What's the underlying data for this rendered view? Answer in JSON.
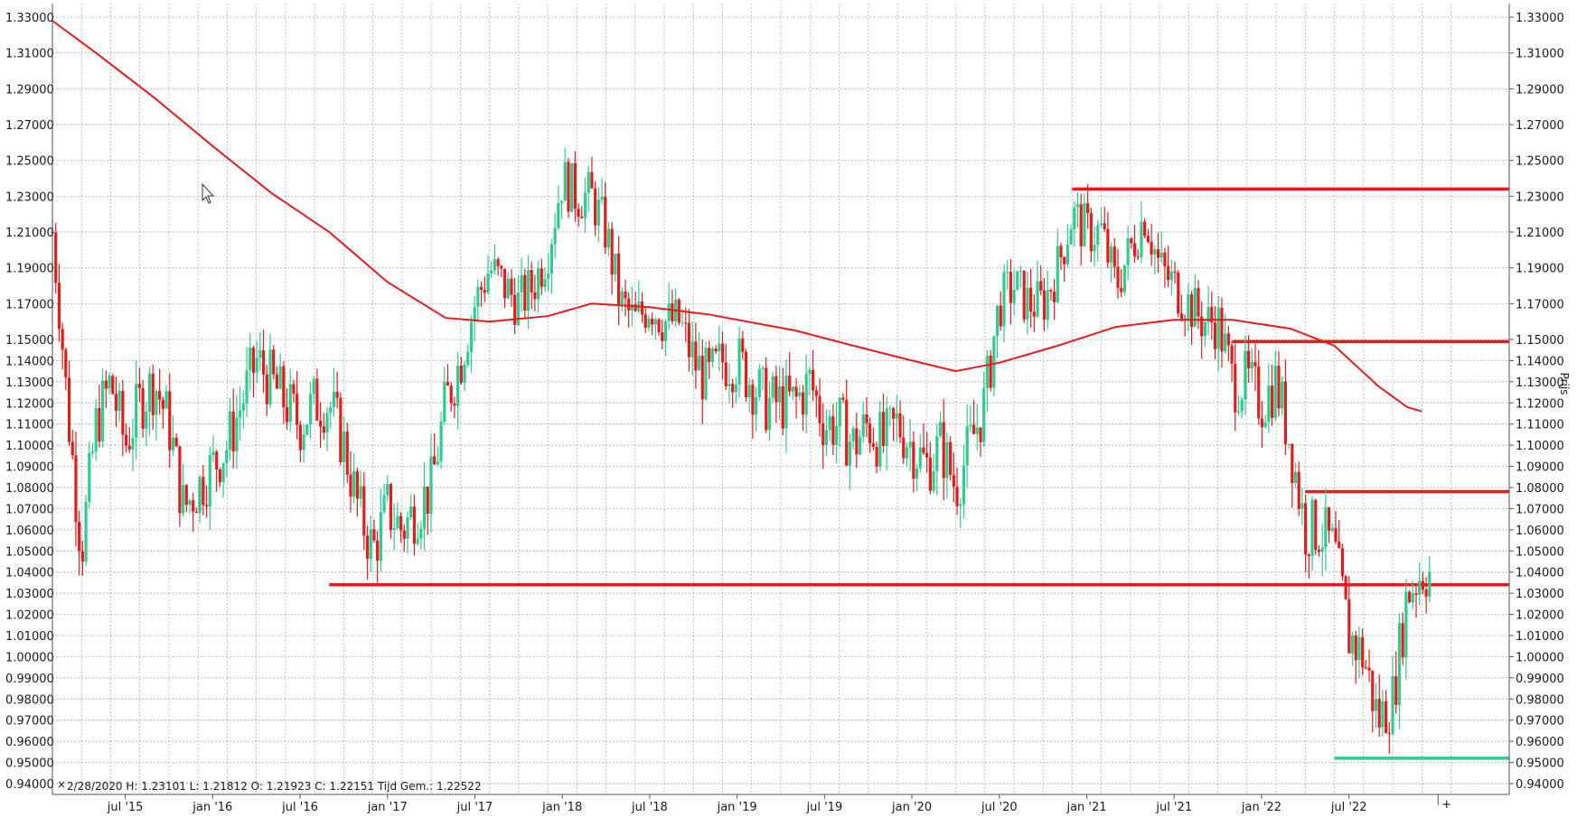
{
  "chart_data": {
    "type": "candlestick",
    "y_axis": {
      "label": "Prijs",
      "range": [
        0.935,
        1.337
      ],
      "ticks": [
        "1.33000",
        "1.31000",
        "1.29000",
        "1.27000",
        "1.25000",
        "1.23000",
        "1.21000",
        "1.19000",
        "1.17000",
        "1.15000",
        "1.14000",
        "1.13000",
        "1.12000",
        "1.11000",
        "1.10000",
        "1.09000",
        "1.08000",
        "1.07000",
        "1.06000",
        "1.05000",
        "1.04000",
        "1.03000",
        "1.02000",
        "1.01000",
        "1.00000",
        "0.99000",
        "0.98000",
        "0.97000",
        "0.96000",
        "0.95000",
        "0.94000"
      ]
    },
    "x_axis": {
      "range": [
        "2015-02",
        "2023-02"
      ],
      "ticks": [
        {
          "label": "jul '15",
          "date": "2015-07"
        },
        {
          "label": "jan '16",
          "date": "2016-01"
        },
        {
          "label": "jul '16",
          "date": "2016-07"
        },
        {
          "label": "jan '17",
          "date": "2017-01"
        },
        {
          "label": "jul '17",
          "date": "2017-07"
        },
        {
          "label": "jan '18",
          "date": "2018-01"
        },
        {
          "label": "jul '18",
          "date": "2018-07"
        },
        {
          "label": "jan '19",
          "date": "2019-01"
        },
        {
          "label": "jul '19",
          "date": "2019-07"
        },
        {
          "label": "jan '20",
          "date": "2020-01"
        },
        {
          "label": "jul '20",
          "date": "2020-07"
        },
        {
          "label": "jan '21",
          "date": "2021-01"
        },
        {
          "label": "jul '21",
          "date": "2021-07"
        },
        {
          "label": "jan '22",
          "date": "2022-01"
        },
        {
          "label": "jul '22",
          "date": "2022-07"
        }
      ]
    },
    "price_path": [
      [
        "2015-02",
        1.21
      ],
      [
        "2015-03",
        1.12
      ],
      [
        "2015-04",
        1.05
      ],
      [
        "2015-05",
        1.11
      ],
      [
        "2015-06",
        1.13
      ],
      [
        "2015-07",
        1.1
      ],
      [
        "2015-08",
        1.12
      ],
      [
        "2015-09",
        1.13
      ],
      [
        "2015-10",
        1.11
      ],
      [
        "2015-11",
        1.07
      ],
      [
        "2015-12",
        1.08
      ],
      [
        "2016-01",
        1.09
      ],
      [
        "2016-02",
        1.1
      ],
      [
        "2016-03",
        1.12
      ],
      [
        "2016-04",
        1.14
      ],
      [
        "2016-05",
        1.13
      ],
      [
        "2016-06",
        1.12
      ],
      [
        "2016-07",
        1.11
      ],
      [
        "2016-08",
        1.12
      ],
      [
        "2016-09",
        1.12
      ],
      [
        "2016-10",
        1.1
      ],
      [
        "2016-11",
        1.07
      ],
      [
        "2016-12",
        1.05
      ],
      [
        "2017-01",
        1.07
      ],
      [
        "2017-02",
        1.06
      ],
      [
        "2017-03",
        1.07
      ],
      [
        "2017-04",
        1.08
      ],
      [
        "2017-05",
        1.12
      ],
      [
        "2017-06",
        1.14
      ],
      [
        "2017-07",
        1.17
      ],
      [
        "2017-08",
        1.19
      ],
      [
        "2017-09",
        1.18
      ],
      [
        "2017-10",
        1.17
      ],
      [
        "2017-11",
        1.18
      ],
      [
        "2017-12",
        1.2
      ],
      [
        "2018-01",
        1.24
      ],
      [
        "2018-02",
        1.23
      ],
      [
        "2018-03",
        1.23
      ],
      [
        "2018-04",
        1.21
      ],
      [
        "2018-05",
        1.17
      ],
      [
        "2018-06",
        1.16
      ],
      [
        "2018-07",
        1.17
      ],
      [
        "2018-08",
        1.16
      ],
      [
        "2018-09",
        1.16
      ],
      [
        "2018-10",
        1.14
      ],
      [
        "2018-11",
        1.13
      ],
      [
        "2018-12",
        1.14
      ],
      [
        "2019-01",
        1.14
      ],
      [
        "2019-02",
        1.13
      ],
      [
        "2019-03",
        1.12
      ],
      [
        "2019-04",
        1.12
      ],
      [
        "2019-05",
        1.12
      ],
      [
        "2019-06",
        1.13
      ],
      [
        "2019-07",
        1.11
      ],
      [
        "2019-08",
        1.11
      ],
      [
        "2019-09",
        1.1
      ],
      [
        "2019-10",
        1.11
      ],
      [
        "2019-11",
        1.1
      ],
      [
        "2019-12",
        1.11
      ],
      [
        "2020-01",
        1.1
      ],
      [
        "2020-02",
        1.09
      ],
      [
        "2020-03",
        1.1
      ],
      [
        "2020-04",
        1.08
      ],
      [
        "2020-05",
        1.1
      ],
      [
        "2020-06",
        1.12
      ],
      [
        "2020-07",
        1.17
      ],
      [
        "2020-08",
        1.18
      ],
      [
        "2020-09",
        1.17
      ],
      [
        "2020-10",
        1.17
      ],
      [
        "2020-11",
        1.19
      ],
      [
        "2020-12",
        1.22
      ],
      [
        "2021-01",
        1.21
      ],
      [
        "2021-02",
        1.21
      ],
      [
        "2021-03",
        1.18
      ],
      [
        "2021-04",
        1.2
      ],
      [
        "2021-05",
        1.22
      ],
      [
        "2021-06",
        1.19
      ],
      [
        "2021-07",
        1.18
      ],
      [
        "2021-08",
        1.17
      ],
      [
        "2021-09",
        1.16
      ],
      [
        "2021-10",
        1.16
      ],
      [
        "2021-11",
        1.13
      ],
      [
        "2021-12",
        1.13
      ],
      [
        "2022-01",
        1.12
      ],
      [
        "2022-02",
        1.13
      ],
      [
        "2022-03",
        1.1
      ],
      [
        "2022-04",
        1.06
      ],
      [
        "2022-05",
        1.06
      ],
      [
        "2022-06",
        1.05
      ],
      [
        "2022-07",
        1.01
      ],
      [
        "2022-08",
        1.0
      ],
      [
        "2022-09",
        0.97
      ],
      [
        "2022-10",
        0.98
      ],
      [
        "2022-11",
        1.03
      ],
      [
        "2022-12",
        1.04
      ]
    ],
    "series": [
      {
        "kind": "moving-average",
        "color": "#e31c1c",
        "points": [
          [
            "2015-02",
            1.328
          ],
          [
            "2015-05",
            1.31
          ],
          [
            "2015-09",
            1.285
          ],
          [
            "2016-01",
            1.258
          ],
          [
            "2016-05",
            1.232
          ],
          [
            "2016-09",
            1.21
          ],
          [
            "2017-01",
            1.182
          ],
          [
            "2017-05",
            1.162
          ],
          [
            "2017-08",
            1.16
          ],
          [
            "2017-12",
            1.163
          ],
          [
            "2018-03",
            1.17
          ],
          [
            "2018-07",
            1.168
          ],
          [
            "2018-11",
            1.164
          ],
          [
            "2019-05",
            1.155
          ],
          [
            "2019-09",
            1.147
          ],
          [
            "2020-01",
            1.14
          ],
          [
            "2020-04",
            1.135
          ],
          [
            "2020-07",
            1.139
          ],
          [
            "2020-11",
            1.147
          ],
          [
            "2021-03",
            1.157
          ],
          [
            "2021-07",
            1.161
          ],
          [
            "2021-11",
            1.161
          ],
          [
            "2022-03",
            1.156
          ],
          [
            "2022-06",
            1.147
          ],
          [
            "2022-09",
            1.128
          ],
          [
            "2022-11",
            1.118
          ],
          [
            "2022-12",
            1.116
          ]
        ]
      }
    ],
    "horizontal_lines": [
      {
        "color": "#e31c1c",
        "y": 1.234,
        "from": "2020-12",
        "to": "end"
      },
      {
        "color": "#e31c1c",
        "y": 1.149,
        "from": "2021-11",
        "to": "end"
      },
      {
        "color": "#e31c1c",
        "y": 1.078,
        "from": "2022-04",
        "to": "end"
      },
      {
        "color": "#e31c1c",
        "y": 1.034,
        "from": "2016-09",
        "to": "end"
      },
      {
        "color": "#2ecc8f",
        "y": 0.952,
        "from": "2022-06",
        "to": "end"
      }
    ],
    "colors": {
      "up": "#2ecc8f",
      "down": "#e31c1c",
      "grid": "#9a9a9a",
      "axis": "#555555"
    }
  },
  "status_bar": {
    "marker": "×",
    "text": "2/28/2020  H: 1.23101  L: 1.21812  O: 1.21923  C: 1.22151  Tijd Gem.: 1.22522"
  },
  "x_axis_end_marker": "+"
}
